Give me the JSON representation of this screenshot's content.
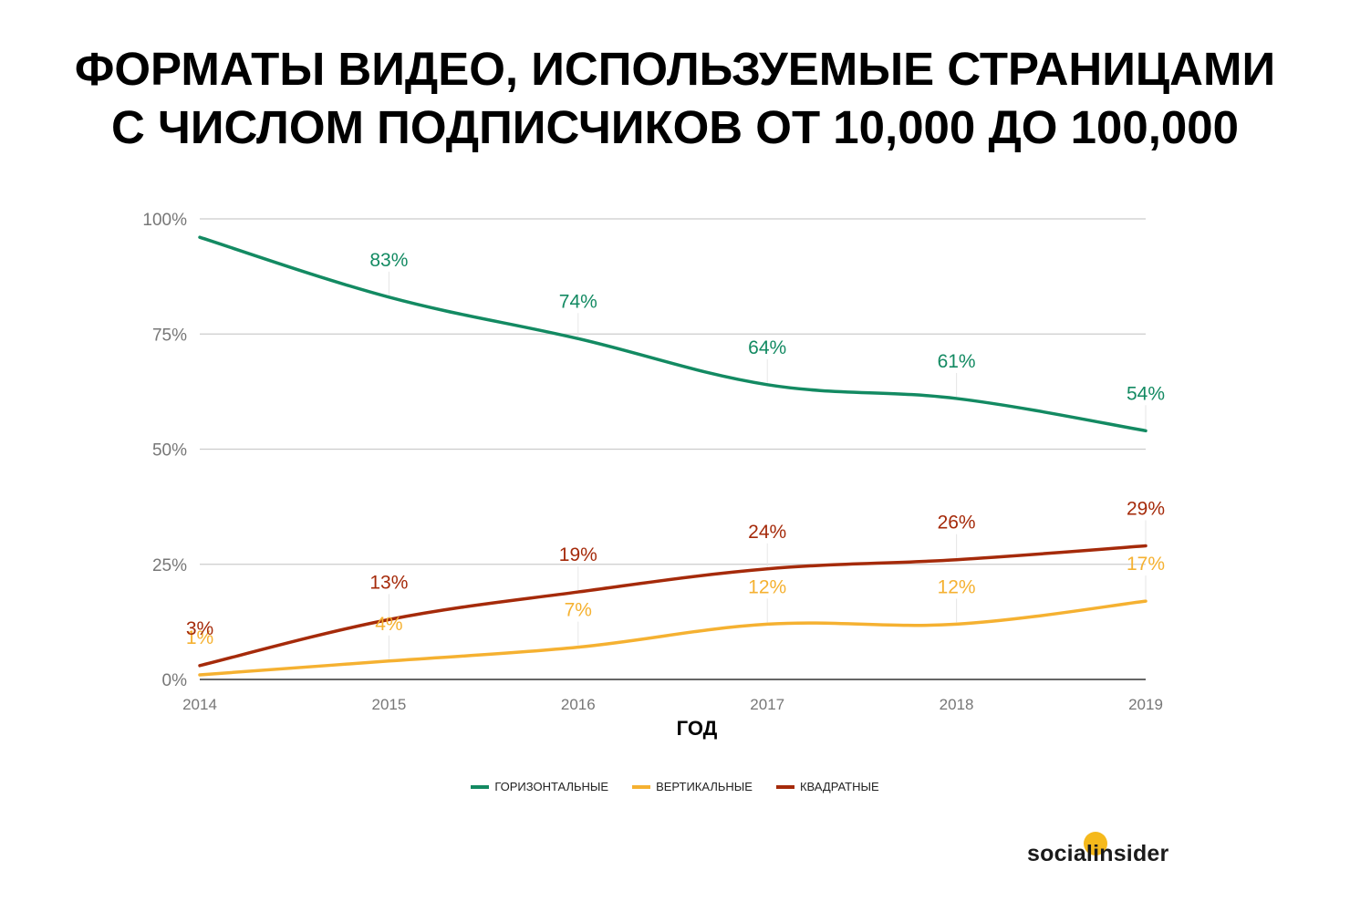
{
  "title_lines": [
    "ФОРМАТЫ ВИДЕО, ИСПОЛЬЗУЕМЫЕ СТРАНИЦАМИ",
    "С ЧИСЛОМ ПОДПИСЧИКОВ ОТ 10,000 ДО 100,000"
  ],
  "brand": "socialinsider",
  "chart_data": {
    "type": "line",
    "x": [
      "2014",
      "2015",
      "2016",
      "2017",
      "2018",
      "2019"
    ],
    "xlabel": "ГОД",
    "ylabel": "",
    "ylim": [
      0,
      100
    ],
    "yticks": [
      "0%",
      "25%",
      "50%",
      "75%",
      "100%"
    ],
    "grid": true,
    "legend_position": "bottom",
    "series": [
      {
        "name": "ГОРИЗОНТАЛЬНЫЕ",
        "color": "#138a62",
        "values": [
          96,
          83,
          74,
          64,
          61,
          54
        ],
        "labels": [
          "",
          "83%",
          "74%",
          "64%",
          "61%",
          "54%"
        ]
      },
      {
        "name": "ВЕРТИКАЛЬНЫЕ",
        "color": "#f5b131",
        "values": [
          1,
          4,
          7,
          12,
          12,
          17
        ],
        "labels": [
          "1%",
          "4%",
          "7%",
          "12%",
          "12%",
          "17%"
        ]
      },
      {
        "name": "КВАДРАТНЫЕ",
        "color": "#a52a0a",
        "values": [
          3,
          13,
          19,
          24,
          26,
          29
        ],
        "labels": [
          "3%",
          "13%",
          "19%",
          "24%",
          "26%",
          "29%"
        ]
      }
    ]
  }
}
